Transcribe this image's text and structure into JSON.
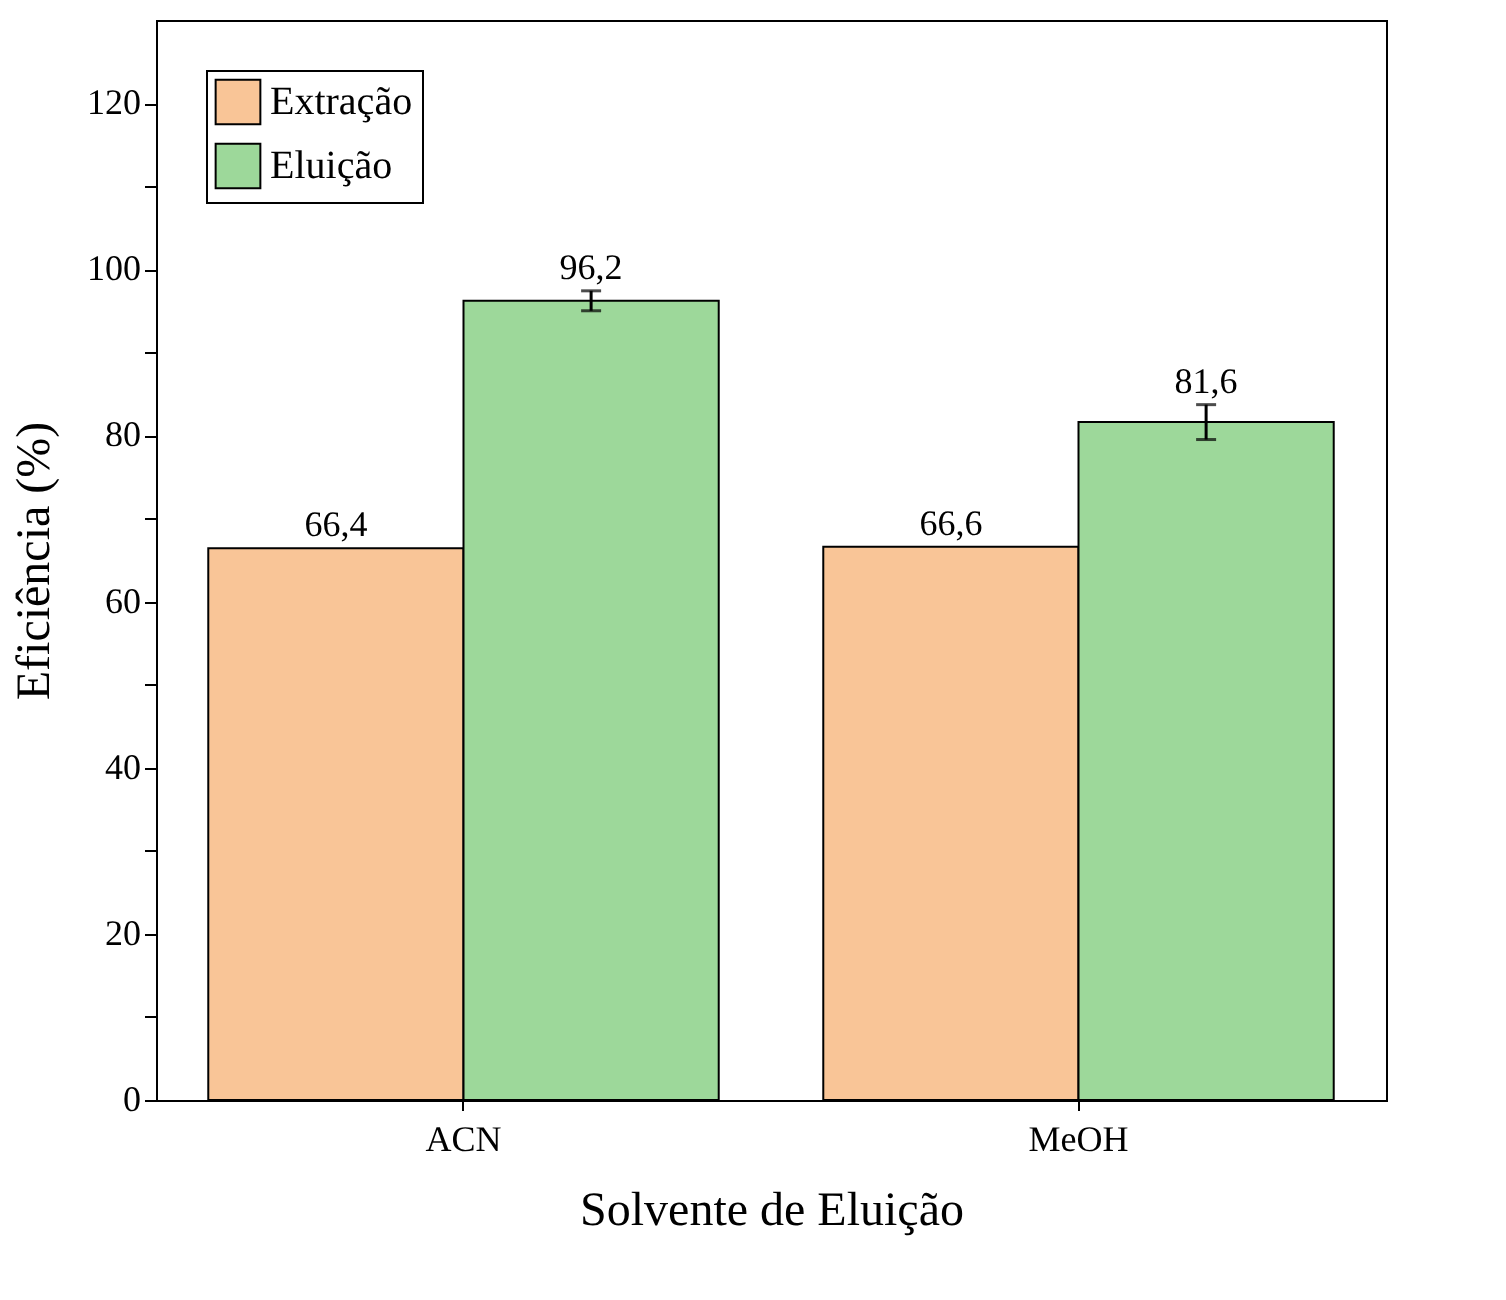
{
  "chart_data": {
    "type": "bar",
    "xlabel": "Solvente de Eluição",
    "ylabel": "Eficiência (%)",
    "categories": [
      "ACN",
      "MeOH"
    ],
    "series": [
      {
        "name": "Extração",
        "color": "#f9c597",
        "values": [
          66.4,
          66.6
        ],
        "value_labels": [
          "66,4",
          "66,6"
        ]
      },
      {
        "name": "Eluição",
        "color": "#9dd89a",
        "values": [
          96.2,
          81.6
        ],
        "errors": [
          1.2,
          2.1
        ],
        "value_labels": [
          "96,2",
          "81,6"
        ]
      }
    ],
    "ylim": [
      0,
      130
    ],
    "yticks": [
      0,
      {
        "value": 10,
        "label": null
      },
      20,
      {
        "value": 30,
        "label": null
      },
      40,
      {
        "value": 50,
        "label": null
      },
      60,
      {
        "value": 70,
        "label": null
      },
      80,
      {
        "value": 90,
        "label": null
      },
      100,
      {
        "value": 110,
        "label": null
      },
      120
    ],
    "grid": false,
    "legend": "top left"
  }
}
